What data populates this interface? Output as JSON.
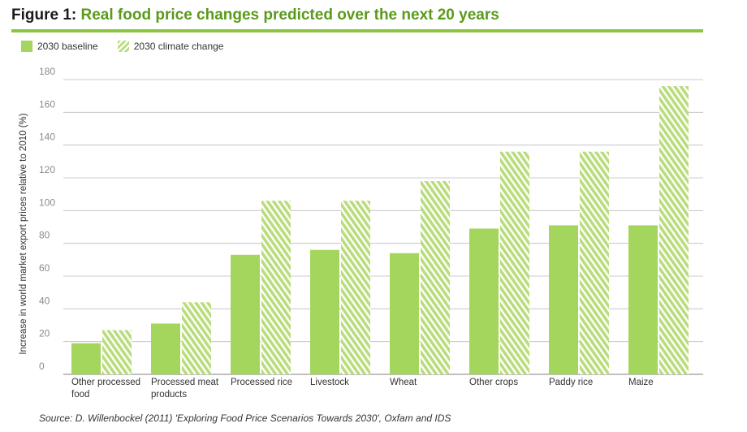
{
  "figure": {
    "label": "Figure 1:",
    "title": "Real food price changes predicted over the next 20 years",
    "source": "Source: D. Willenbockel (2011) 'Exploring Food Price Scenarios Towards 2030', Oxfam and IDS"
  },
  "colors": {
    "baseline": "#a4d65e",
    "climate": "#b9dc7c",
    "rule": "#8cc63f",
    "title": "#5a9a1a"
  },
  "chart_data": {
    "type": "bar",
    "categories": [
      [
        "Other processed",
        "food"
      ],
      [
        "Processed meat",
        "products"
      ],
      [
        "Processed rice"
      ],
      [
        "Livestock"
      ],
      [
        "Wheat"
      ],
      [
        "Other crops"
      ],
      [
        "Paddy rice"
      ],
      [
        "Maize"
      ]
    ],
    "series": [
      {
        "name": "2030 baseline",
        "style": "solid",
        "values": [
          19,
          31,
          73,
          76,
          74,
          89,
          91,
          91
        ]
      },
      {
        "name": "2030 climate change",
        "style": "hatched",
        "values": [
          27,
          44,
          106,
          106,
          118,
          136,
          136,
          176
        ]
      }
    ],
    "ylabel": "Increase in world market export prices relative to 2010 (%)",
    "xlabel": "",
    "ylim": [
      0,
      180
    ],
    "yticks": [
      0,
      20,
      40,
      60,
      80,
      100,
      120,
      140,
      160,
      180
    ],
    "grid": true,
    "legend": "top-left"
  }
}
